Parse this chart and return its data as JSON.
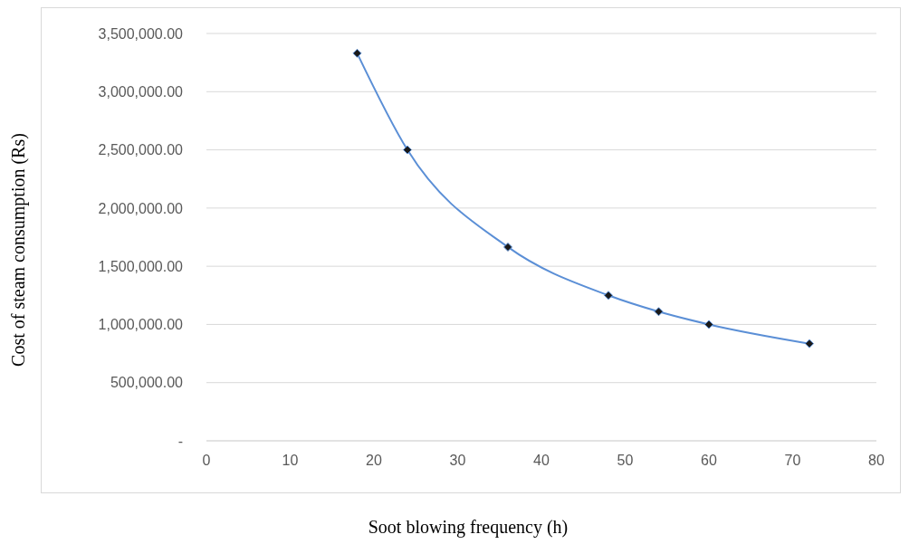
{
  "chart_data": {
    "type": "line",
    "xlabel": "Soot blowing frequency (h)",
    "ylabel": "Cost of steam consumption (Rs)",
    "x": [
      18,
      24,
      36,
      48,
      54,
      60,
      72
    ],
    "series": [
      {
        "color": "#5b8fd6",
        "values": [
          3330000,
          2500000,
          1665000,
          1250000,
          1110000,
          1000000,
          835000
        ]
      }
    ],
    "xlim": [
      0,
      80
    ],
    "xticks": [
      0,
      10,
      20,
      30,
      40,
      50,
      60,
      70,
      80
    ],
    "ylim": [
      0,
      3500000
    ],
    "yticks": [
      {
        "value": 0,
        "label": "-"
      },
      {
        "value": 500000,
        "label": "500,000.00"
      },
      {
        "value": 1000000,
        "label": "1,000,000.00"
      },
      {
        "value": 1500000,
        "label": "1,500,000.00"
      },
      {
        "value": 2000000,
        "label": "2,000,000.00"
      },
      {
        "value": 2500000,
        "label": "2,500,000.00"
      },
      {
        "value": 3000000,
        "label": "3,000,000.00"
      },
      {
        "value": 3500000,
        "label": "3,500,000.00"
      }
    ],
    "grid": "y",
    "marker": "diamond",
    "legend": false
  }
}
